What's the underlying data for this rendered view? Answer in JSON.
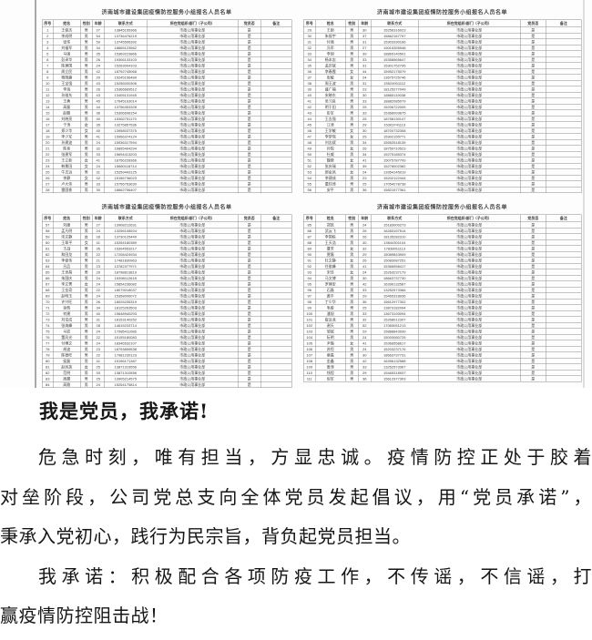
{
  "colors": {
    "edge_left": "#a9a9a9",
    "edge_right": "#dedede",
    "table_border": "#8a8a8a",
    "table_text": "#3d3d3d",
    "letter_text": "#161616"
  },
  "scan": {
    "table_title": "济南城市建设集团疫情防控服务小组报名人员名单",
    "columns": [
      "序号",
      "姓名",
      "性别",
      "年龄",
      "联系方式",
      "所在党组织/部门（子公司）",
      "党员否",
      "备注"
    ],
    "org_value": "市政公用事业部",
    "party_value": "是",
    "remark_value": "",
    "tables": [
      {
        "start": 1,
        "rows": [
          [
            "王俊杰",
            "男",
            "27",
            "13845155366"
          ],
          [
            "李成明",
            "男",
            "54",
            "13736476219"
          ],
          [
            "张伟",
            "男",
            "59",
            "13745506392"
          ],
          [
            "刘福军",
            "男",
            "34",
            "18665123562"
          ],
          [
            "马强",
            "男",
            "35",
            "15369223866"
          ],
          [
            "彭泽华",
            "男",
            "26",
            "19306133103"
          ],
          [
            "陈建国",
            "男",
            "24",
            "15263004103"
          ],
          [
            "周立民",
            "男",
            "42",
            "18792745068"
          ],
          [
            "杨晓峰",
            "男",
            "29",
            "15245156489"
          ],
          [
            "王宝强",
            "男",
            "43",
            "15256000306"
          ],
          [
            "李海",
            "男",
            "26",
            "15366669512"
          ],
          [
            "孙维东",
            "男",
            "43",
            "13405131945"
          ],
          [
            "王勇",
            "男",
            "45",
            "17645163014"
          ],
          [
            "高磊",
            "男",
            "44",
            "13756353328"
          ],
          [
            "赵鹏",
            "男",
            "36",
            "15306608154"
          ],
          [
            "刘晓亮",
            "男",
            "40",
            "15362751170"
          ],
          [
            "于涛",
            "女",
            "35",
            "13275857536"
          ],
          [
            "郑少华",
            "女",
            "40",
            "13958037375"
          ],
          [
            "李少军",
            "男",
            "41",
            "15956374124"
          ],
          [
            "孙建波",
            "男",
            "24",
            "15936317594"
          ],
          [
            "陈亮",
            "男",
            "32",
            "16895404294"
          ],
          [
            "张建军",
            "男",
            "33",
            "15694413203"
          ],
          [
            "王立新",
            "女",
            "41",
            "18756228366"
          ],
          [
            "韩景田",
            "女",
            "24",
            "15660118714"
          ],
          [
            "牛志远",
            "男",
            "31",
            "15259443125"
          ],
          [
            "李静",
            "女",
            "42",
            "15156736023"
          ],
          [
            "卢大伟",
            "男",
            "33",
            "15756763630"
          ],
          [
            "雷国栋",
            "男",
            "30",
            "18662756407"
          ]
        ]
      },
      {
        "start": 29,
        "rows": [
          [
            "王刚",
            "男",
            "30",
            "15256316023"
          ],
          [
            "朱振宇",
            "男",
            "37",
            "15862167797"
          ],
          [
            "付强",
            "男",
            "31",
            "15303330166"
          ],
          [
            "冯军",
            "男",
            "27",
            "19015355948"
          ],
          [
            "李旭",
            "男",
            "39",
            "18865140501"
          ],
          [
            "杨本忠",
            "男",
            "33",
            "15358565647"
          ],
          [
            "孟庆斌",
            "男",
            "31",
            "15301752795"
          ],
          [
            "李春霞",
            "女",
            "44",
            "15952175079"
          ],
          [
            "张敏",
            "女",
            "24",
            "13675725746"
          ],
          [
            "周玉波",
            "男",
            "31",
            "15524901112"
          ],
          [
            "盛广福",
            "男",
            "23",
            "18125277049"
          ],
          [
            "宋晓东",
            "男",
            "30",
            "18865119038"
          ],
          [
            "吴习良",
            "男",
            "33",
            "18882085079"
          ],
          [
            "明于田",
            "男",
            "25",
            "15206722005"
          ],
          [
            "彭军",
            "男",
            "33",
            "15366093675"
          ],
          [
            "王志强",
            "男",
            "25",
            "18758130147"
          ],
          [
            "江涛",
            "男",
            "29",
            "15303741113"
          ],
          [
            "王学敏",
            "女",
            "30",
            "18700732308"
          ],
          [
            "李梦瑶",
            "女",
            "25",
            "15302155771"
          ],
          [
            "刘志斌",
            "男",
            "34",
            "15552518135"
          ],
          [
            "孙悦",
            "女",
            "26",
            "18759710523"
          ],
          [
            "杜威",
            "男",
            "34",
            "15275185374"
          ],
          [
            "魏晓",
            "女",
            "41",
            "15075787709"
          ],
          [
            "张庆瑞",
            "男",
            "39",
            "15278002382"
          ],
          [
            "郭金凤",
            "女",
            "24",
            "13954145019"
          ],
          [
            "李建成",
            "男",
            "23",
            "15202122444"
          ],
          [
            "董钧涛",
            "男",
            "25",
            "17054278738"
          ],
          [
            "安平",
            "男",
            "36",
            "15821577361"
          ]
        ]
      },
      {
        "start": 57,
        "rows": [
          [
            "刘康",
            "男",
            "27",
            "13908212631"
          ],
          [
            "孟凡明",
            "男",
            "24",
            "13256108924"
          ],
          [
            "宋文静",
            "女",
            "28",
            "13730125440"
          ],
          [
            "王翠平",
            "女",
            "41",
            "15254180389"
          ],
          [
            "王战",
            "男",
            "35",
            "15304553217"
          ],
          [
            "和田龙",
            "男",
            "22",
            "17208424934"
          ],
          [
            "李俊伟",
            "男",
            "21",
            "17481830963"
          ],
          [
            "吕品",
            "男",
            "23",
            "13782377971"
          ],
          [
            "王世昌",
            "男",
            "29",
            "18798813819"
          ],
          [
            "朱国庆",
            "男",
            "24",
            "15398112618"
          ],
          [
            "李文菁",
            "女",
            "24",
            "15854236082"
          ],
          [
            "王金奇",
            "男",
            "22",
            "18079018037"
          ],
          [
            "赵明玉",
            "男",
            "24",
            "15358006072"
          ],
          [
            "许兴旺",
            "男",
            "26",
            "18025235319"
          ],
          [
            "徐辉",
            "男",
            "34",
            "18125263503"
          ],
          [
            "何建",
            "男",
            "40",
            "15648940293"
          ],
          [
            "刘宝成",
            "男",
            "31",
            "18153140252"
          ],
          [
            "张海峰",
            "男",
            "28",
            "14615233714"
          ],
          [
            "马岩",
            "男",
            "24",
            "17985411086"
          ],
          [
            "董风光",
            "男",
            "22",
            "15195180083"
          ],
          [
            "付博文",
            "男",
            "24",
            "18346532107"
          ],
          [
            "胡波",
            "男",
            "23",
            "18793859538"
          ],
          [
            "陈德旺",
            "男",
            "22",
            "17981230123"
          ],
          [
            "侯磊",
            "男",
            "41",
            "15196171387"
          ],
          [
            "赵凤英",
            "女",
            "25",
            "13871319556"
          ],
          [
            "范明",
            "男",
            "33",
            "13871310556"
          ],
          [
            "周晨",
            "男",
            "25",
            "13905214575"
          ],
          [
            "高歌",
            "男",
            "24",
            "15254175814"
          ]
        ]
      },
      {
        "start": 85,
        "rows": [
          [
            "郑凯",
            "男",
            "24",
            "15183000273"
          ],
          [
            "武云飞",
            "男",
            "26",
            "16283157514"
          ],
          [
            "李国栋",
            "男",
            "26",
            "18135282310"
          ],
          [
            "王天浩",
            "男",
            "40",
            "13844301104"
          ],
          [
            "曹芳",
            "女",
            "32",
            "17838011113"
          ],
          [
            "贾磊",
            "男",
            "29",
            "15089843909"
          ],
          [
            "杜文静",
            "女",
            "26",
            "15083087251"
          ],
          [
            "任俊峰",
            "男",
            "41",
            "15366558417"
          ],
          [
            "宋佳",
            "女",
            "24",
            "15263237179"
          ],
          [
            "马文博",
            "男",
            "30",
            "18663737730"
          ],
          [
            "罗建安",
            "男",
            "42",
            "16396132587"
          ],
          [
            "石磊",
            "男",
            "33",
            "13252573366"
          ],
          [
            "黄平",
            "男",
            "29",
            "15465318936"
          ],
          [
            "丁少华",
            "男",
            "36",
            "15612977302"
          ],
          [
            "毛俊",
            "男",
            "25",
            "13873182094"
          ],
          [
            "潘旭",
            "男",
            "33",
            "13673193094"
          ],
          [
            "崔云龙",
            "男",
            "32",
            "15268012307"
          ],
          [
            "谢天",
            "男",
            "52",
            "17083051213"
          ],
          [
            "邹斌",
            "男",
            "29",
            "15888843939"
          ],
          [
            "阮明",
            "男",
            "24",
            "15093080725"
          ],
          [
            "尹璐",
            "女",
            "41",
            "15366558617"
          ],
          [
            "苏恒",
            "男",
            "24",
            "15203237176"
          ],
          [
            "章磊",
            "男",
            "30",
            "18663737731"
          ],
          [
            "金鑫",
            "男",
            "42",
            "16396132588"
          ],
          [
            "姜涛",
            "男",
            "33",
            "13252573367"
          ],
          [
            "钱程",
            "男",
            "29",
            "15465318937"
          ],
          [
            "倪军",
            "男",
            "36",
            "15612977303"
          ]
        ]
      }
    ]
  },
  "letter": {
    "heading": "我是党员，我承诺!",
    "paragraphs": [
      [
        "危急时刻，唯有担当，方显忠诚。疫情防控正处于胶着",
        "对垒阶段，公司党总支向全体党员发起倡议，用“党员承诺”，",
        "秉承入党初心，践行为民宗旨，背负起党员担当。"
      ],
      [
        "我承诺：积极配合各项防疫工作，不传谣，不信谣，打",
        "赢疫情防控阻击战！"
      ]
    ]
  }
}
